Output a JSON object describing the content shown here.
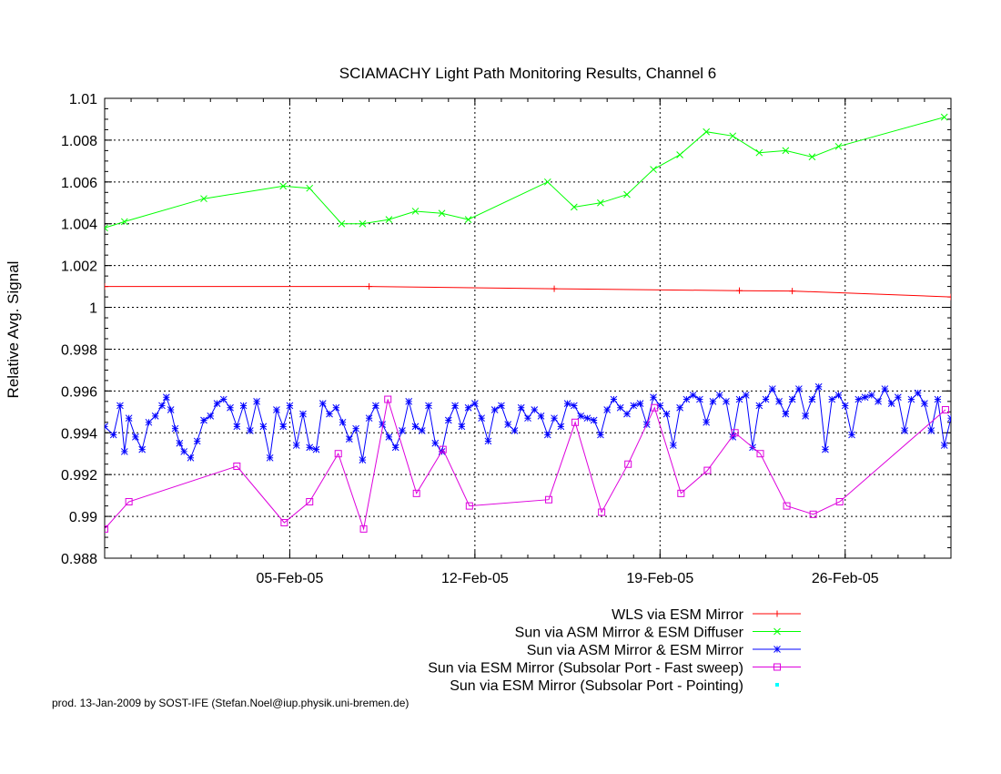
{
  "chart_data": {
    "type": "line",
    "title": "SCIAMACHY Light Path Monitoring Results, Channel 6",
    "ylabel": "Relative Avg. Signal",
    "xlabel": "",
    "x_axis": {
      "type": "date",
      "range": [
        "2005-01-29T00:00",
        "2005-03-02T00:00"
      ],
      "ticks": [
        "2005-02-05",
        "2005-02-12",
        "2005-02-19",
        "2005-02-26"
      ],
      "tick_labels": [
        "05-Feb-05",
        "12-Feb-05",
        "19-Feb-05",
        "26-Feb-05"
      ]
    },
    "y_axis": {
      "range": [
        0.988,
        1.01
      ],
      "ticks": [
        0.988,
        0.99,
        0.992,
        0.994,
        0.996,
        0.998,
        1,
        1.002,
        1.004,
        1.006,
        1.008,
        1.01
      ],
      "tick_labels": [
        "0.988",
        "0.99",
        "0.992",
        "0.994",
        "0.996",
        "0.998",
        "1",
        "1.002",
        "1.004",
        "1.006",
        "1.008",
        "1.01"
      ]
    },
    "grid": true,
    "legend_position": "bottom-right, outside plot",
    "series": [
      {
        "name": "WLS via ESM Mirror",
        "color": "#ff0000",
        "marker": "plus",
        "points": [
          [
            "2005-01-29T00:00",
            1.001
          ],
          [
            "2005-02-08T00:00",
            1.001
          ],
          [
            "2005-02-15T00:00",
            1.00089
          ],
          [
            "2005-02-22T00:00",
            1.0008
          ],
          [
            "2005-02-24T00:00",
            1.00078
          ],
          [
            "2005-03-02T00:00",
            1.0005
          ]
        ]
      },
      {
        "name": "Sun via ASM Mirror & ESM Diffuser",
        "color": "#00ff00",
        "marker": "cross",
        "points": [
          [
            "2005-01-29T00:00",
            1.0038
          ],
          [
            "2005-01-29T18:00",
            1.0041
          ],
          [
            "2005-02-01T18:00",
            1.0052
          ],
          [
            "2005-02-04T18:00",
            1.0058
          ],
          [
            "2005-02-05T18:00",
            1.0057
          ],
          [
            "2005-02-06T23:00",
            1.004
          ],
          [
            "2005-02-07T18:00",
            1.004
          ],
          [
            "2005-02-08T18:00",
            1.0042
          ],
          [
            "2005-02-09T18:00",
            1.0046
          ],
          [
            "2005-02-10T18:00",
            1.0045
          ],
          [
            "2005-02-11T18:00",
            1.0042
          ],
          [
            "2005-02-14T18:00",
            1.006
          ],
          [
            "2005-02-15T18:00",
            1.0048
          ],
          [
            "2005-02-16T18:00",
            1.005
          ],
          [
            "2005-02-17T18:00",
            1.0054
          ],
          [
            "2005-02-18T18:00",
            1.0066
          ],
          [
            "2005-02-19T18:00",
            1.0073
          ],
          [
            "2005-02-20T18:00",
            1.0084
          ],
          [
            "2005-02-21T18:00",
            1.0082
          ],
          [
            "2005-02-22T18:00",
            1.0074
          ],
          [
            "2005-02-23T18:00",
            1.0075
          ],
          [
            "2005-02-24T18:00",
            1.0072
          ],
          [
            "2005-02-25T18:00",
            1.0077
          ],
          [
            "2005-03-01T18:00",
            1.0091
          ]
        ]
      },
      {
        "name": "Sun via ASM Mirror & ESM Mirror",
        "color": "#0000ff",
        "marker": "star",
        "points": [
          [
            "2005-01-29T00:00",
            0.9943
          ],
          [
            "2005-01-29T08:00",
            0.9939
          ],
          [
            "2005-01-29T14:00",
            0.9953
          ],
          [
            "2005-01-29T18:00",
            0.9931
          ],
          [
            "2005-01-29T22:00",
            0.9947
          ],
          [
            "2005-01-30T04:00",
            0.9938
          ],
          [
            "2005-01-30T10:00",
            0.9932
          ],
          [
            "2005-01-30T16:00",
            0.9945
          ],
          [
            "2005-01-30T22:00",
            0.9948
          ],
          [
            "2005-01-31T04:00",
            0.9953
          ],
          [
            "2005-01-31T08:00",
            0.9957
          ],
          [
            "2005-01-31T12:00",
            0.9951
          ],
          [
            "2005-01-31T16:00",
            0.9942
          ],
          [
            "2005-01-31T20:00",
            0.9935
          ],
          [
            "2005-02-01T00:00",
            0.9931
          ],
          [
            "2005-02-01T06:00",
            0.9928
          ],
          [
            "2005-02-01T12:00",
            0.9936
          ],
          [
            "2005-02-01T18:00",
            0.9946
          ],
          [
            "2005-02-02T00:00",
            0.9948
          ],
          [
            "2005-02-02T06:00",
            0.9954
          ],
          [
            "2005-02-02T12:00",
            0.9956
          ],
          [
            "2005-02-02T18:00",
            0.9952
          ],
          [
            "2005-02-03T00:00",
            0.9943
          ],
          [
            "2005-02-03T06:00",
            0.9953
          ],
          [
            "2005-02-03T12:00",
            0.9941
          ],
          [
            "2005-02-03T18:00",
            0.9955
          ],
          [
            "2005-02-04T00:00",
            0.9943
          ],
          [
            "2005-02-04T06:00",
            0.9928
          ],
          [
            "2005-02-04T12:00",
            0.9951
          ],
          [
            "2005-02-04T18:00",
            0.9943
          ],
          [
            "2005-02-05T00:00",
            0.9953
          ],
          [
            "2005-02-05T06:00",
            0.9934
          ],
          [
            "2005-02-05T12:00",
            0.9949
          ],
          [
            "2005-02-05T18:00",
            0.9933
          ],
          [
            "2005-02-06T00:00",
            0.9932
          ],
          [
            "2005-02-06T06:00",
            0.9954
          ],
          [
            "2005-02-06T12:00",
            0.9949
          ],
          [
            "2005-02-06T18:00",
            0.9952
          ],
          [
            "2005-02-07T00:00",
            0.9945
          ],
          [
            "2005-02-07T06:00",
            0.9937
          ],
          [
            "2005-02-07T12:00",
            0.9942
          ],
          [
            "2005-02-07T18:00",
            0.9927
          ],
          [
            "2005-02-08T00:00",
            0.9947
          ],
          [
            "2005-02-08T06:00",
            0.9953
          ],
          [
            "2005-02-08T12:00",
            0.9944
          ],
          [
            "2005-02-08T18:00",
            0.9938
          ],
          [
            "2005-02-09T00:00",
            0.9933
          ],
          [
            "2005-02-09T06:00",
            0.9941
          ],
          [
            "2005-02-09T12:00",
            0.9955
          ],
          [
            "2005-02-09T18:00",
            0.9943
          ],
          [
            "2005-02-10T00:00",
            0.9941
          ],
          [
            "2005-02-10T06:00",
            0.9953
          ],
          [
            "2005-02-10T12:00",
            0.9935
          ],
          [
            "2005-02-10T18:00",
            0.9931
          ],
          [
            "2005-02-11T00:00",
            0.9946
          ],
          [
            "2005-02-11T06:00",
            0.9953
          ],
          [
            "2005-02-11T12:00",
            0.9943
          ],
          [
            "2005-02-11T18:00",
            0.9952
          ],
          [
            "2005-02-12T00:00",
            0.9954
          ],
          [
            "2005-02-12T06:00",
            0.9947
          ],
          [
            "2005-02-12T12:00",
            0.9936
          ],
          [
            "2005-02-12T18:00",
            0.9951
          ],
          [
            "2005-02-13T00:00",
            0.9953
          ],
          [
            "2005-02-13T06:00",
            0.9944
          ],
          [
            "2005-02-13T12:00",
            0.9941
          ],
          [
            "2005-02-13T18:00",
            0.9952
          ],
          [
            "2005-02-14T00:00",
            0.9947
          ],
          [
            "2005-02-14T06:00",
            0.9951
          ],
          [
            "2005-02-14T12:00",
            0.9948
          ],
          [
            "2005-02-14T18:00",
            0.9939
          ],
          [
            "2005-02-15T00:00",
            0.9947
          ],
          [
            "2005-02-15T06:00",
            0.9943
          ],
          [
            "2005-02-15T12:00",
            0.9954
          ],
          [
            "2005-02-15T18:00",
            0.9953
          ],
          [
            "2005-02-16T00:00",
            0.9948
          ],
          [
            "2005-02-16T06:00",
            0.9947
          ],
          [
            "2005-02-16T12:00",
            0.9946
          ],
          [
            "2005-02-16T18:00",
            0.9939
          ],
          [
            "2005-02-17T00:00",
            0.9951
          ],
          [
            "2005-02-17T06:00",
            0.9956
          ],
          [
            "2005-02-17T12:00",
            0.9952
          ],
          [
            "2005-02-17T18:00",
            0.9949
          ],
          [
            "2005-02-18T00:00",
            0.9953
          ],
          [
            "2005-02-18T06:00",
            0.9954
          ],
          [
            "2005-02-18T12:00",
            0.9944
          ],
          [
            "2005-02-18T18:00",
            0.9957
          ],
          [
            "2005-02-19T00:00",
            0.9953
          ],
          [
            "2005-02-19T06:00",
            0.9949
          ],
          [
            "2005-02-19T12:00",
            0.9934
          ],
          [
            "2005-02-19T18:00",
            0.9952
          ],
          [
            "2005-02-20T00:00",
            0.9956
          ],
          [
            "2005-02-20T06:00",
            0.9958
          ],
          [
            "2005-02-20T12:00",
            0.9956
          ],
          [
            "2005-02-20T18:00",
            0.9945
          ],
          [
            "2005-02-21T00:00",
            0.9955
          ],
          [
            "2005-02-21T06:00",
            0.9958
          ],
          [
            "2005-02-21T12:00",
            0.9955
          ],
          [
            "2005-02-21T18:00",
            0.9938
          ],
          [
            "2005-02-22T00:00",
            0.9956
          ],
          [
            "2005-02-22T06:00",
            0.9958
          ],
          [
            "2005-02-22T12:00",
            0.9933
          ],
          [
            "2005-02-22T18:00",
            0.9953
          ],
          [
            "2005-02-23T00:00",
            0.9956
          ],
          [
            "2005-02-23T06:00",
            0.9961
          ],
          [
            "2005-02-23T12:00",
            0.9955
          ],
          [
            "2005-02-23T18:00",
            0.9949
          ],
          [
            "2005-02-24T00:00",
            0.9956
          ],
          [
            "2005-02-24T06:00",
            0.9961
          ],
          [
            "2005-02-24T12:00",
            0.9948
          ],
          [
            "2005-02-24T18:00",
            0.9956
          ],
          [
            "2005-02-25T00:00",
            0.9962
          ],
          [
            "2005-02-25T06:00",
            0.9932
          ],
          [
            "2005-02-25T12:00",
            0.9956
          ],
          [
            "2005-02-25T18:00",
            0.9958
          ],
          [
            "2005-02-26T00:00",
            0.9953
          ],
          [
            "2005-02-26T06:00",
            0.9939
          ],
          [
            "2005-02-26T12:00",
            0.9956
          ],
          [
            "2005-02-26T18:00",
            0.9957
          ],
          [
            "2005-02-27T00:00",
            0.9958
          ],
          [
            "2005-02-27T06:00",
            0.9955
          ],
          [
            "2005-02-27T12:00",
            0.9961
          ],
          [
            "2005-02-27T18:00",
            0.9954
          ],
          [
            "2005-02-28T00:00",
            0.9957
          ],
          [
            "2005-02-28T06:00",
            0.9941
          ],
          [
            "2005-02-28T12:00",
            0.9956
          ],
          [
            "2005-02-28T18:00",
            0.9959
          ],
          [
            "2005-03-01T00:00",
            0.9954
          ],
          [
            "2005-03-01T06:00",
            0.9941
          ],
          [
            "2005-03-01T12:00",
            0.9956
          ],
          [
            "2005-03-01T18:00",
            0.9934
          ],
          [
            "2005-03-02T00:00",
            0.9947
          ]
        ]
      },
      {
        "name": "Sun via ESM Mirror (Subsolar Port - Fast sweep)",
        "color": "#dd00dd",
        "marker": "square",
        "points": [
          [
            "2005-01-29T00:00",
            0.9894
          ],
          [
            "2005-01-29T22:00",
            0.9907
          ],
          [
            "2005-02-03T00:00",
            0.9924
          ],
          [
            "2005-02-04T19:00",
            0.9897
          ],
          [
            "2005-02-05T18:00",
            0.9907
          ],
          [
            "2005-02-06T20:00",
            0.993
          ],
          [
            "2005-02-07T19:00",
            0.9894
          ],
          [
            "2005-02-08T17:00",
            0.9956
          ],
          [
            "2005-02-09T19:00",
            0.9911
          ],
          [
            "2005-02-10T19:00",
            0.9932
          ],
          [
            "2005-02-11T19:00",
            0.9905
          ],
          [
            "2005-02-14T19:00",
            0.9908
          ],
          [
            "2005-02-15T19:00",
            0.9945
          ],
          [
            "2005-02-16T19:00",
            0.9902
          ],
          [
            "2005-02-17T19:00",
            0.9925
          ],
          [
            "2005-02-18T19:00",
            0.9952
          ],
          [
            "2005-02-19T19:00",
            0.9911
          ],
          [
            "2005-02-20T19:00",
            0.9922
          ],
          [
            "2005-02-21T20:00",
            0.994
          ],
          [
            "2005-02-22T19:00",
            0.993
          ],
          [
            "2005-02-23T19:00",
            0.9905
          ],
          [
            "2005-02-24T19:00",
            0.9901
          ],
          [
            "2005-02-25T19:00",
            0.9907
          ],
          [
            "2005-03-01T19:00",
            0.9951
          ]
        ]
      },
      {
        "name": "Sun via ESM Mirror (Subsolar Port - Pointing)",
        "color": "#00ffff",
        "marker": "dot",
        "points": []
      }
    ]
  },
  "footer": {
    "text": "prod. 13-Jan-2009 by SOST-IFE (Stefan.Noel@iup.physik.uni-bremen.de)"
  }
}
